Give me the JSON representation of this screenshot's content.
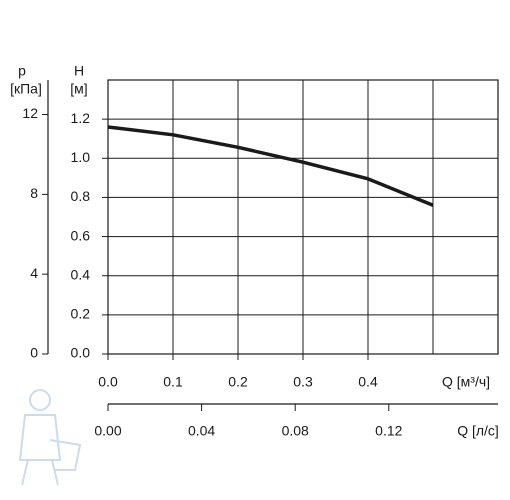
{
  "chart_data": {
    "type": "line",
    "x": [
      0,
      0.1,
      0.2,
      0.3,
      0.4,
      0.5
    ],
    "series": [
      {
        "color": "#1a1a1a",
        "values": [
          1.16,
          1.12,
          1.056,
          0.98,
          0.895,
          0.76
        ]
      }
    ],
    "xlim": [
      0,
      0.6
    ],
    "xticks": [
      {
        "value": 0,
        "label": "0.0"
      },
      0.1,
      0.2,
      0.3,
      0.4
    ],
    "xgrid": [
      0.1,
      0.2,
      0.3,
      0.4,
      0.5
    ],
    "x_label": "Q [м³/ч]",
    "x2lim": [
      0,
      0.16667
    ],
    "x2ticks": [
      {
        "value": 0,
        "label": "0.00"
      },
      0.04,
      0.08,
      0.12
    ],
    "x2_label": "Q [л/с]",
    "ylim": [
      0,
      1.4
    ],
    "yticks": [
      {
        "value": 0,
        "label": "0.0"
      },
      0.2,
      0.4,
      0.6,
      0.8,
      {
        "value": 1,
        "label": "1.0"
      },
      1.2
    ],
    "y_label": "H",
    "y_unit": "[м]",
    "y2lim": [
      0,
      13.73
    ],
    "y2ticks": [
      0,
      4,
      8,
      12
    ],
    "y2_label": "p",
    "y2_unit": "[кПа]",
    "grid": true
  }
}
